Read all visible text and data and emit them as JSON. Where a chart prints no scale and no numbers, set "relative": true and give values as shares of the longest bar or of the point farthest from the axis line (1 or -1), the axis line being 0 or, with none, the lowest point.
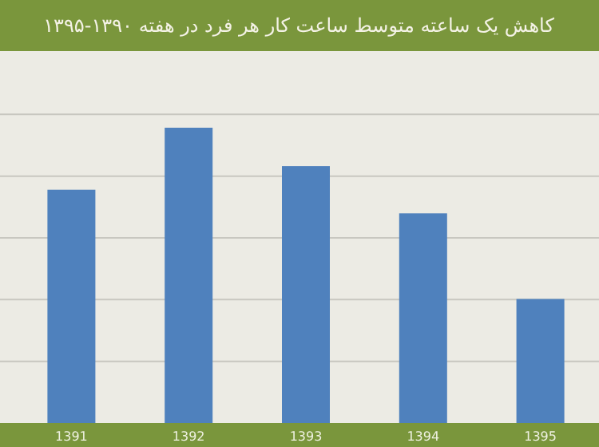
{
  "chart_data": {
    "type": "bar",
    "title": "کاهش یک ساعته متوسط ساعت کار هر فرد در هفته ۱۳۹۰-۱۳۹۵",
    "categories": [
      "1391",
      "1392",
      "1393",
      "1394",
      "1395"
    ],
    "values": [
      0.79,
      1,
      0.87,
      0.71,
      0.42
    ],
    "color": "#4f81bd",
    "relative": true,
    "grid": "y"
  }
}
